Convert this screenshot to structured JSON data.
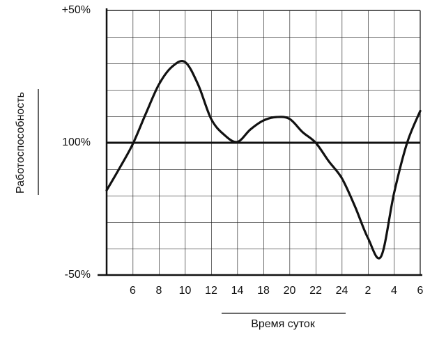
{
  "chart_data": {
    "type": "line",
    "y_label": "Работоспособность",
    "x_label": "Время суток",
    "categories": [
      null,
      null,
      "6",
      null,
      "8",
      null,
      "10",
      null,
      "12",
      null,
      "14",
      null,
      "18",
      null,
      "20",
      null,
      "22",
      null,
      "24",
      null,
      "2",
      null,
      "4",
      null,
      "6"
    ],
    "series": [
      {
        "color": "#111111",
        "values": [
          -18,
          -9.5,
          -0.5,
          11,
          22,
          28.7,
          30.5,
          22,
          9,
          3,
          0.3,
          5,
          8.4,
          9.7,
          9,
          4,
          0,
          -7,
          -13.4,
          -24,
          -36,
          -43,
          -19,
          0,
          12
        ]
      }
    ],
    "ylim": [
      -50,
      50
    ],
    "yticks": [
      {
        "value": 50,
        "label": "+50%"
      },
      {
        "value": 0,
        "label": "100%"
      },
      {
        "value": -50,
        "label": "-50%"
      }
    ],
    "grid": true
  }
}
